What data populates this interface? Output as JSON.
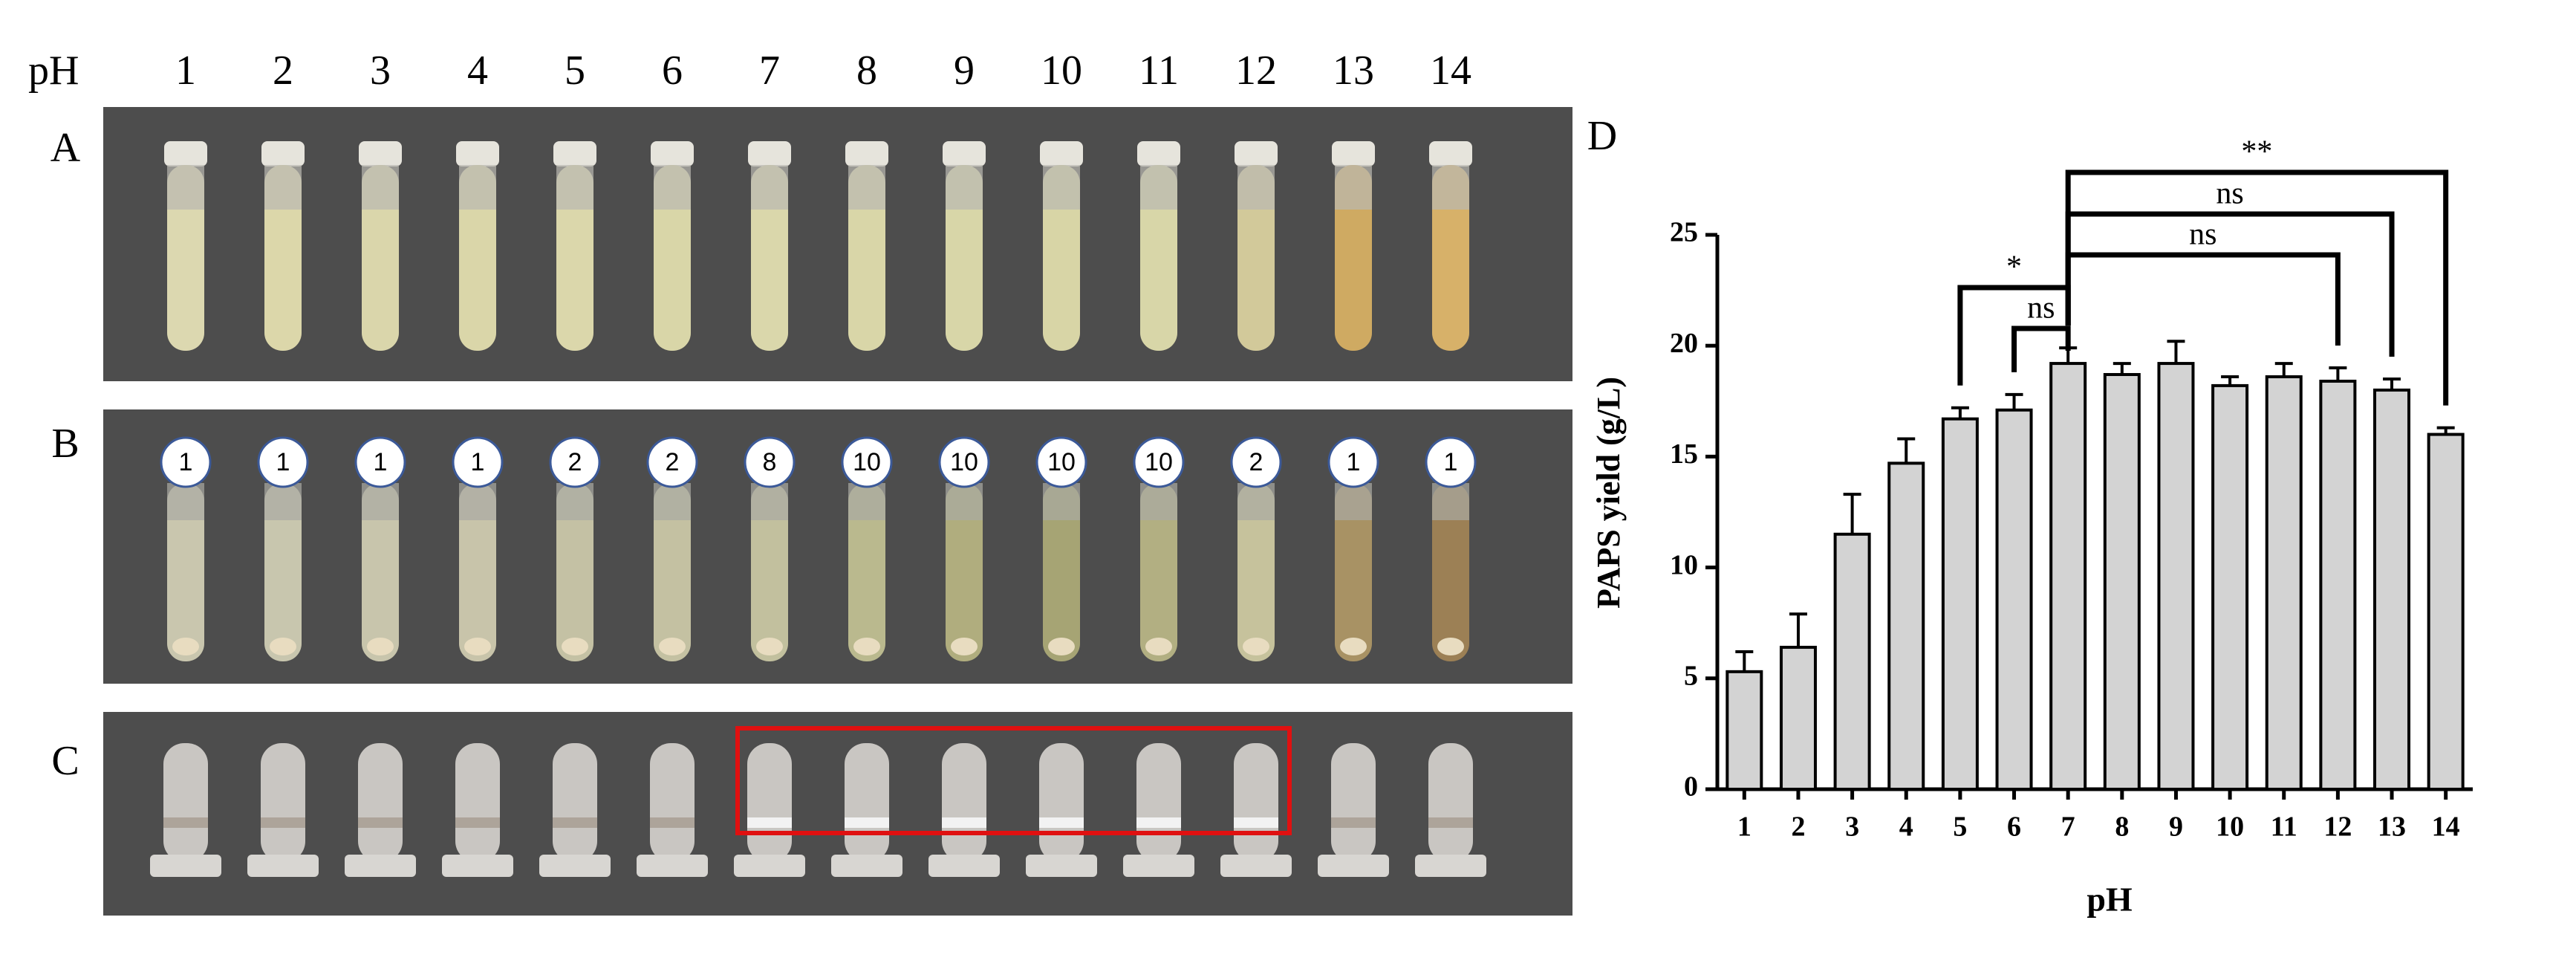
{
  "figure": {
    "ph_label": "pH",
    "ph_values": [
      1,
      2,
      3,
      4,
      5,
      6,
      7,
      8,
      9,
      10,
      11,
      12,
      13,
      14
    ],
    "panels": [
      "A",
      "B",
      "C"
    ],
    "b_scores": [
      1,
      1,
      1,
      1,
      2,
      2,
      8,
      10,
      10,
      10,
      10,
      2,
      1,
      1
    ]
  },
  "chart_data": {
    "type": "bar",
    "panel": "D",
    "x_label": "pH",
    "y_label": "PAPS yield (g/L)",
    "categories": [
      1,
      2,
      3,
      4,
      5,
      6,
      7,
      8,
      9,
      10,
      11,
      12,
      13,
      14
    ],
    "values": [
      5.3,
      6.4,
      11.5,
      14.7,
      16.7,
      17.1,
      19.2,
      18.7,
      19.2,
      18.2,
      18.6,
      18.4,
      18.0,
      16.0
    ],
    "errors": [
      0.9,
      1.5,
      1.8,
      1.1,
      0.5,
      0.7,
      0.7,
      0.5,
      1.0,
      0.4,
      0.6,
      0.6,
      0.5,
      0.3
    ],
    "color": "#d3d3d3",
    "ylim": [
      0,
      25
    ],
    "yticks": [
      0,
      5,
      10,
      15,
      20,
      25
    ],
    "comparisons": [
      {
        "label": "*"
      },
      {
        "label": "ns"
      },
      {
        "label": "ns"
      },
      {
        "label": "ns"
      },
      {
        "label": "**"
      }
    ]
  }
}
